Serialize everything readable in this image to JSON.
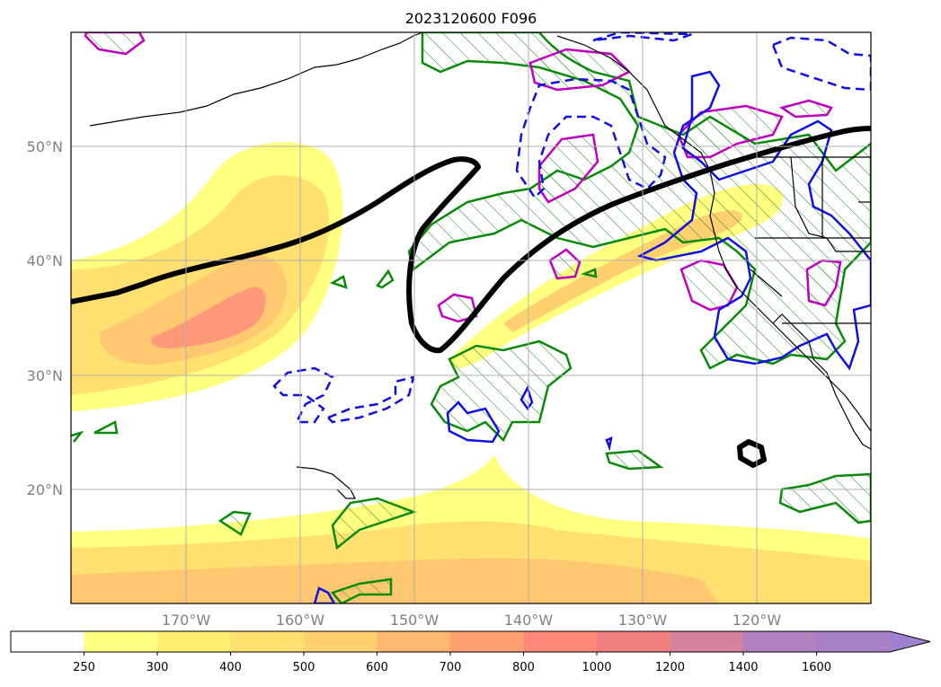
{
  "title": "2023120600 F096",
  "lat_labels": [
    "50°N",
    "40°N",
    "30°N",
    "20°N"
  ],
  "lon_labels": [
    "170°W",
    "160°W",
    "150°W",
    "140°W",
    "130°W",
    "120°W"
  ],
  "colorbar": {
    "ticks": [
      "250",
      "300",
      "400",
      "500",
      "600",
      "700",
      "800",
      "1000",
      "1200",
      "1400",
      "1600"
    ],
    "colors": [
      "#ffffff",
      "#ffff80",
      "#fff070",
      "#ffe070",
      "#ffd070",
      "#ffb870",
      "#ffa070",
      "#ff8878",
      "#f08080",
      "#d880a0",
      "#b080c0",
      "#a880c8",
      "#a080d0"
    ]
  },
  "map_data": {
    "type": "map",
    "projection": "plate-carree",
    "lat_range": [
      10,
      60
    ],
    "lon_range": [
      -180,
      -110
    ],
    "grid": true,
    "contours": {
      "jet_axis": "black",
      "solid": [
        "green",
        "blue",
        "magenta"
      ],
      "dashed": "blue"
    }
  }
}
